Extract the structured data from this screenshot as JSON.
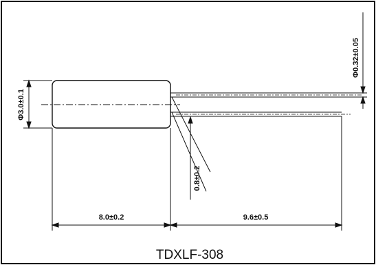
{
  "diagram": {
    "model": "TDXLF-308",
    "dimensions": {
      "body_length": "8.0±0.2",
      "lead_length": "9.6±0.5",
      "body_diameter": "Φ3.0±0.1",
      "lead_diameter": "Φ0.32±0.05",
      "lead_spacing": "0.8±0.2"
    }
  }
}
